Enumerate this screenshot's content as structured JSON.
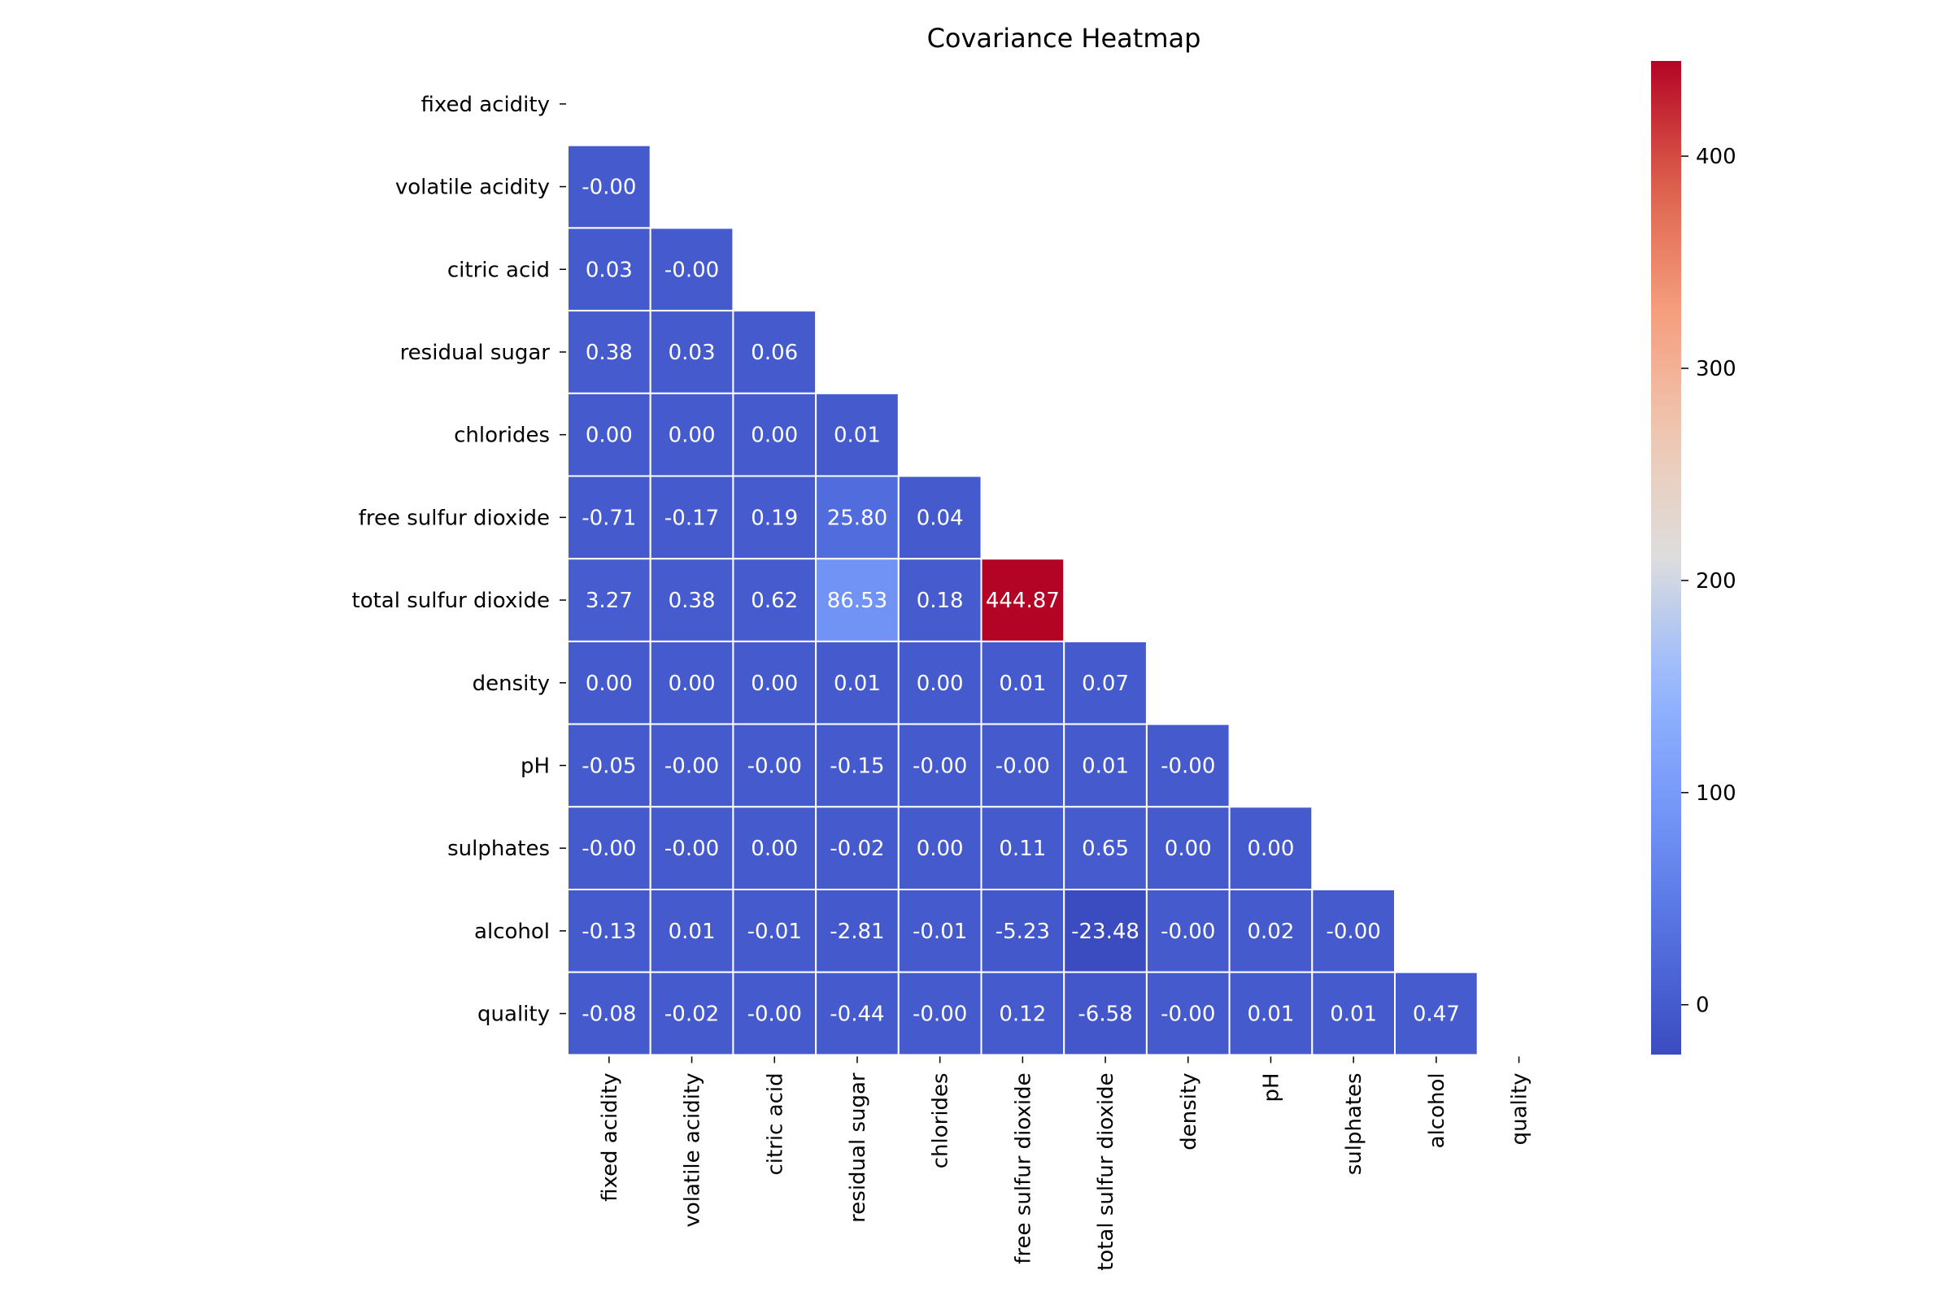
{
  "chart_data": {
    "type": "heatmap",
    "title": "Covariance Heatmap",
    "xlabel": "",
    "ylabel": "",
    "categories": [
      "fixed acidity",
      "volatile acidity",
      "citric acid",
      "residual sugar",
      "chlorides",
      "free sulfur dioxide",
      "total sulfur dioxide",
      "density",
      "pH",
      "sulphates",
      "alcohol",
      "quality"
    ],
    "mask": "upper-triangle-including-diagonal",
    "colormap": "coolwarm",
    "vmin": -23.48,
    "vmax": 444.87,
    "colorbar_ticks": [
      0,
      100,
      200,
      300,
      400
    ],
    "values": [
      [
        null,
        null,
        null,
        null,
        null,
        null,
        null,
        null,
        null,
        null,
        null,
        null
      ],
      [
        -0.0,
        null,
        null,
        null,
        null,
        null,
        null,
        null,
        null,
        null,
        null,
        null
      ],
      [
        0.03,
        -0.0,
        null,
        null,
        null,
        null,
        null,
        null,
        null,
        null,
        null,
        null
      ],
      [
        0.38,
        0.03,
        0.06,
        null,
        null,
        null,
        null,
        null,
        null,
        null,
        null,
        null
      ],
      [
        0.0,
        0.0,
        0.0,
        0.01,
        null,
        null,
        null,
        null,
        null,
        null,
        null,
        null
      ],
      [
        -0.71,
        -0.17,
        0.19,
        25.8,
        0.04,
        null,
        null,
        null,
        null,
        null,
        null,
        null
      ],
      [
        3.27,
        0.38,
        0.62,
        86.53,
        0.18,
        444.87,
        null,
        null,
        null,
        null,
        null,
        null
      ],
      [
        0.0,
        0.0,
        0.0,
        0.01,
        0.0,
        0.01,
        0.07,
        null,
        null,
        null,
        null,
        null
      ],
      [
        -0.05,
        -0.0,
        -0.0,
        -0.15,
        -0.0,
        -0.0,
        0.01,
        -0.0,
        null,
        null,
        null,
        null
      ],
      [
        -0.0,
        -0.0,
        0.0,
        -0.02,
        0.0,
        0.11,
        0.65,
        0.0,
        0.0,
        null,
        null,
        null
      ],
      [
        -0.13,
        0.01,
        -0.01,
        -2.81,
        -0.01,
        -5.23,
        -23.48,
        -0.0,
        0.02,
        -0.0,
        null,
        null
      ],
      [
        -0.08,
        -0.02,
        -0.0,
        -0.44,
        -0.0,
        0.12,
        -6.58,
        -0.0,
        0.01,
        0.01,
        0.47,
        null
      ]
    ],
    "cell_labels": [
      [
        null,
        null,
        null,
        null,
        null,
        null,
        null,
        null,
        null,
        null,
        null,
        null
      ],
      [
        "-0.00",
        null,
        null,
        null,
        null,
        null,
        null,
        null,
        null,
        null,
        null,
        null
      ],
      [
        "0.03",
        "-0.00",
        null,
        null,
        null,
        null,
        null,
        null,
        null,
        null,
        null,
        null
      ],
      [
        "0.38",
        "0.03",
        "0.06",
        null,
        null,
        null,
        null,
        null,
        null,
        null,
        null,
        null
      ],
      [
        "0.00",
        "0.00",
        "0.00",
        "0.01",
        null,
        null,
        null,
        null,
        null,
        null,
        null,
        null
      ],
      [
        "-0.71",
        "-0.17",
        "0.19",
        "25.80",
        "0.04",
        null,
        null,
        null,
        null,
        null,
        null,
        null
      ],
      [
        "3.27",
        "0.38",
        "0.62",
        "86.53",
        "0.18",
        "444.87",
        null,
        null,
        null,
        null,
        null,
        null
      ],
      [
        "0.00",
        "0.00",
        "0.00",
        "0.01",
        "0.00",
        "0.01",
        "0.07",
        null,
        null,
        null,
        null,
        null
      ],
      [
        "-0.05",
        "-0.00",
        "-0.00",
        "-0.15",
        "-0.00",
        "-0.00",
        "0.01",
        "-0.00",
        null,
        null,
        null,
        null
      ],
      [
        "-0.00",
        "-0.00",
        "0.00",
        "-0.02",
        "0.00",
        "0.11",
        "0.65",
        "0.00",
        "0.00",
        null,
        null,
        null
      ],
      [
        "-0.13",
        "0.01",
        "-0.01",
        "-2.81",
        "-0.01",
        "-5.23",
        "-23.48",
        "-0.00",
        "0.02",
        "-0.00",
        null,
        null
      ],
      [
        "-0.08",
        "-0.02",
        "-0.00",
        "-0.44",
        "-0.00",
        "0.12",
        "-6.58",
        "-0.00",
        "0.01",
        "0.01",
        "0.47",
        null
      ]
    ]
  }
}
